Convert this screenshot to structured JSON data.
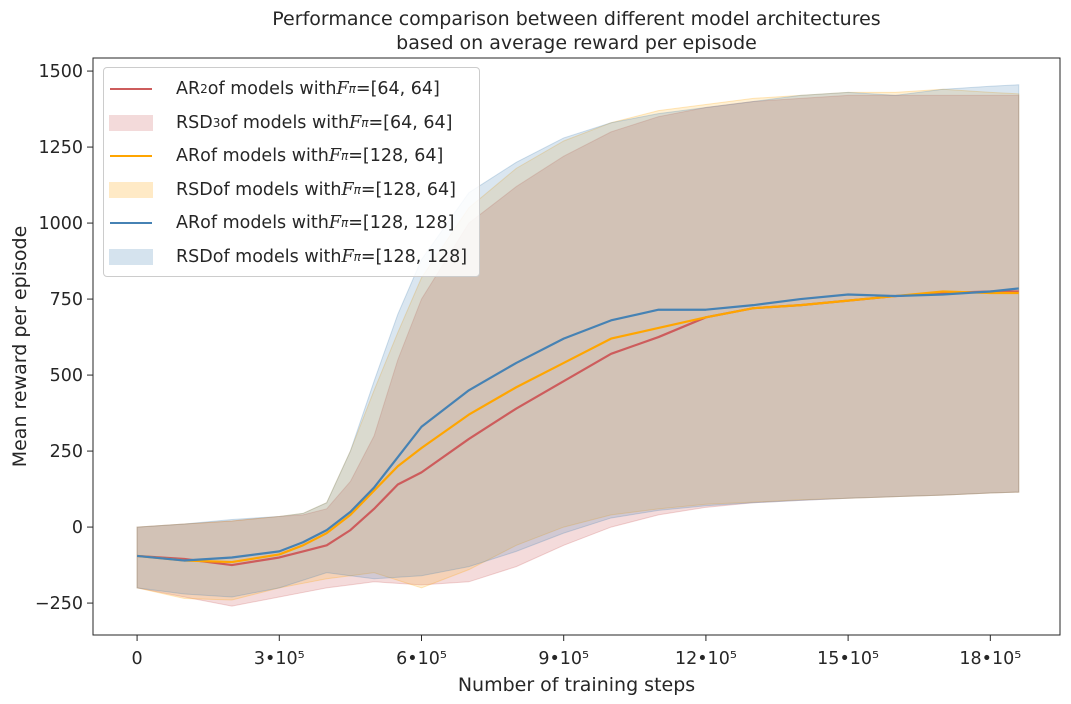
{
  "chart_data": {
    "type": "line",
    "title": [
      "Performance comparison between different model architectures",
      "based on average reward per episode"
    ],
    "xlabel": "Number of training steps",
    "ylabel": "Mean reward per episode",
    "xlim": [
      -93000,
      1947000
    ],
    "ylim": [
      -355,
      1543
    ],
    "xticks": [
      0,
      300000,
      600000,
      900000,
      1200000,
      1500000,
      1800000
    ],
    "xtick_labels": [
      "0",
      "3•10⁵",
      "6•10⁵",
      "9•10⁵",
      "12•10⁵",
      "15•10⁵",
      "18•10⁵"
    ],
    "yticks": [
      -250,
      0,
      250,
      500,
      750,
      1000,
      1250,
      1500
    ],
    "ytick_labels": [
      "−250",
      "0",
      "250",
      "500",
      "750",
      "1000",
      "1250",
      "1500"
    ],
    "legend_position": "top-left",
    "x": [
      0,
      100000,
      200000,
      300000,
      350000,
      400000,
      450000,
      500000,
      550000,
      600000,
      700000,
      800000,
      900000,
      1000000,
      1100000,
      1200000,
      1300000,
      1400000,
      1500000,
      1600000,
      1700000,
      1800000,
      1860000
    ],
    "series": [
      {
        "name": "[64, 64]",
        "color": "#cd5c5c",
        "mean": [
          -95,
          -105,
          -125,
          -100,
          -80,
          -60,
          -10,
          60,
          140,
          180,
          290,
          390,
          480,
          570,
          625,
          690,
          720,
          730,
          745,
          760,
          770,
          775,
          775
        ],
        "upper": [
          0,
          10,
          20,
          35,
          40,
          60,
          150,
          300,
          550,
          750,
          1000,
          1120,
          1220,
          1300,
          1350,
          1380,
          1400,
          1410,
          1420,
          1420,
          1420,
          1420,
          1420
        ],
        "lower": [
          -200,
          -230,
          -260,
          -230,
          -215,
          -200,
          -190,
          -180,
          -185,
          -190,
          -180,
          -130,
          -60,
          0,
          40,
          65,
          80,
          88,
          95,
          100,
          105,
          112,
          115
        ]
      },
      {
        "name": "[128, 64]",
        "color": "#ffa500",
        "mean": [
          -95,
          -110,
          -115,
          -90,
          -60,
          -20,
          40,
          120,
          200,
          260,
          370,
          460,
          540,
          620,
          655,
          690,
          720,
          730,
          745,
          760,
          775,
          770,
          770
        ],
        "upper": [
          0,
          10,
          20,
          35,
          45,
          80,
          250,
          450,
          640,
          820,
          1050,
          1180,
          1270,
          1330,
          1370,
          1390,
          1410,
          1420,
          1430,
          1430,
          1440,
          1430,
          1425
        ],
        "lower": [
          -200,
          -235,
          -240,
          -200,
          -185,
          -170,
          -160,
          -150,
          -175,
          -200,
          -140,
          -60,
          0,
          40,
          60,
          75,
          82,
          90,
          95,
          100,
          105,
          112,
          115
        ]
      },
      {
        "name": "[128, 128]",
        "color": "#4682b4",
        "mean": [
          -95,
          -110,
          -100,
          -80,
          -50,
          -10,
          50,
          130,
          230,
          330,
          450,
          540,
          620,
          680,
          715,
          715,
          730,
          750,
          765,
          760,
          765,
          775,
          785
        ],
        "upper": [
          0,
          10,
          25,
          35,
          45,
          80,
          250,
          480,
          700,
          880,
          1100,
          1200,
          1280,
          1330,
          1360,
          1380,
          1400,
          1420,
          1430,
          1420,
          1440,
          1450,
          1455
        ],
        "lower": [
          -200,
          -220,
          -230,
          -200,
          -175,
          -150,
          -160,
          -170,
          -165,
          -160,
          -130,
          -80,
          -20,
          30,
          55,
          70,
          80,
          88,
          95,
          100,
          105,
          112,
          115
        ]
      }
    ]
  },
  "legend": [
    {
      "pre": "AR",
      "sup": "2",
      "mid": " of models with ",
      "f": "F",
      "sub": "π",
      "post": "=[64, 64]"
    },
    {
      "pre": "RSD",
      "sup": "3",
      "mid": " of models with ",
      "f": "F",
      "sub": "π",
      "post": "=[64, 64]"
    },
    {
      "pre": "AR",
      "sup": "",
      "mid": " of models with ",
      "f": "F",
      "sub": "π",
      "post": "=[128, 64]"
    },
    {
      "pre": "RSD",
      "sup": "",
      "mid": " of models with ",
      "f": "F",
      "sub": "π",
      "post": "=[128, 64]"
    },
    {
      "pre": "AR",
      "sup": "",
      "mid": " of models with ",
      "f": "F",
      "sub": "π",
      "post": "=[128, 128]"
    },
    {
      "pre": "RSD",
      "sup": "",
      "mid": " of models with ",
      "f": "F",
      "sub": "π",
      "post": "=[128, 128]"
    }
  ]
}
